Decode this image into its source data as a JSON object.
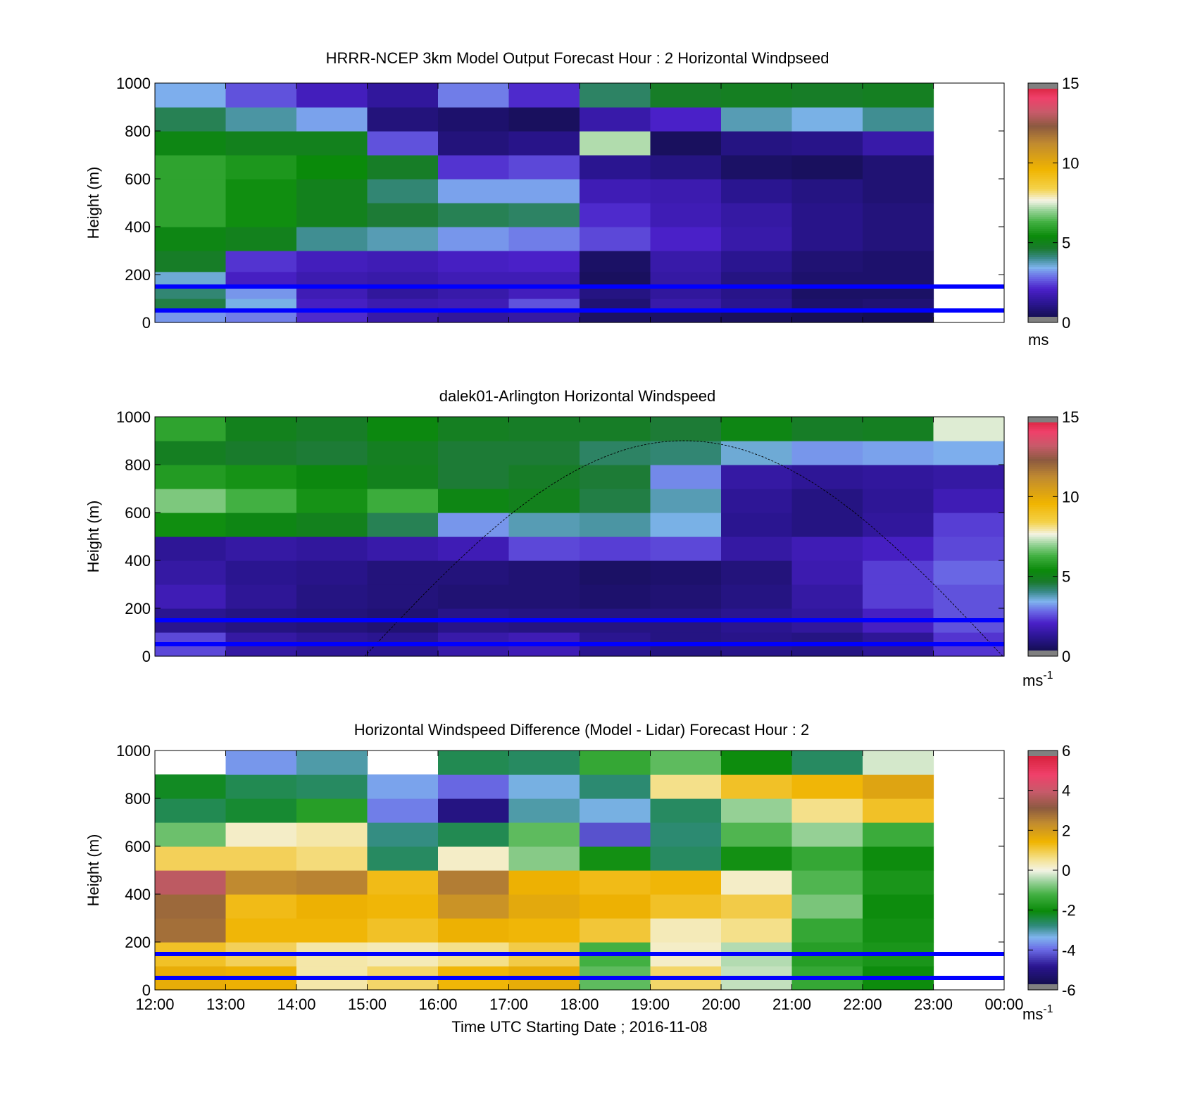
{
  "figure": {
    "xlabel": "Time UTC  Starting Date ; 2016-11-08",
    "x_tick_labels": [
      "12:00",
      "13:00",
      "14:00",
      "15:00",
      "16:00",
      "17:00",
      "18:00",
      "19:00",
      "20:00",
      "21:00",
      "22:00",
      "23:00",
      "00:00"
    ]
  },
  "chart_data": [
    {
      "type": "heatmap",
      "title": "HRRR-NCEP 3km Model Output   Forecast Hour : 2 Horizontal Windpseed",
      "ylabel": "Height (m)",
      "ylim": [
        0,
        1000
      ],
      "y_ticks": [
        0,
        200,
        400,
        600,
        800,
        1000
      ],
      "colorbar": {
        "range": [
          0,
          15
        ],
        "ticks": [
          0,
          5,
          10,
          15
        ],
        "unit": "ms",
        "unit_sup": ""
      },
      "x_hours": [
        "12:00",
        "13:00",
        "14:00",
        "15:00",
        "16:00",
        "17:00",
        "18:00",
        "19:00",
        "20:00",
        "21:00",
        "22:00"
      ],
      "y_levels": [
        25,
        75,
        125,
        175,
        250,
        350,
        450,
        550,
        650,
        750,
        850,
        950
      ],
      "values": [
        [
          3.2,
          3.0,
          2.2,
          1.6,
          1.4,
          1.5,
          0.6,
          0.6,
          0.5,
          0.4,
          0.3
        ],
        [
          4.5,
          3.5,
          2.0,
          1.7,
          1.8,
          2.6,
          0.8,
          1.6,
          1.2,
          0.7,
          0.8
        ],
        [
          4.2,
          3.2,
          1.8,
          1.4,
          1.6,
          1.9,
          1.0,
          1.4,
          1.1,
          0.6,
          0.6
        ],
        [
          3.6,
          2.0,
          1.7,
          1.6,
          1.8,
          1.8,
          0.5,
          1.5,
          1.0,
          0.7,
          0.7
        ],
        [
          4.8,
          2.3,
          1.9,
          1.8,
          2.0,
          2.1,
          0.6,
          1.6,
          1.2,
          0.8,
          0.7
        ],
        [
          5.2,
          5.0,
          4.0,
          3.8,
          3.2,
          3.0,
          2.5,
          2.1,
          1.6,
          1.1,
          0.9
        ],
        [
          6.0,
          5.5,
          5.0,
          4.6,
          4.4,
          4.3,
          2.2,
          1.8,
          1.5,
          1.1,
          0.9
        ],
        [
          6.0,
          5.5,
          5.0,
          4.2,
          3.3,
          3.3,
          1.8,
          1.7,
          1.2,
          1.0,
          0.8
        ],
        [
          6.0,
          5.7,
          5.4,
          4.8,
          2.3,
          2.5,
          1.2,
          1.0,
          0.6,
          0.5,
          0.8
        ],
        [
          5.2,
          5.0,
          5.0,
          2.6,
          0.9,
          1.1,
          7.2,
          0.5,
          1.0,
          1.1,
          1.6
        ],
        [
          4.4,
          3.9,
          3.3,
          0.9,
          0.7,
          0.5,
          1.6,
          2.1,
          3.8,
          3.5,
          4.0
        ],
        [
          3.4,
          2.6,
          1.9,
          1.4,
          3.0,
          2.2,
          4.3,
          4.8,
          4.9,
          4.8,
          4.9
        ]
      ],
      "reference_lines_m": [
        150,
        50
      ],
      "reference_line_color": "#0000ff"
    },
    {
      "type": "heatmap",
      "title": "dalek01-Arlington  Horizontal Windspeed",
      "ylabel": "Height (m)",
      "ylim": [
        0,
        1000
      ],
      "y_ticks": [
        0,
        200,
        400,
        600,
        800,
        1000
      ],
      "colorbar": {
        "range": [
          0,
          15
        ],
        "ticks": [
          0,
          5,
          10,
          15
        ],
        "unit": "ms",
        "unit_sup": "-1"
      },
      "x_hours": [
        "12:00",
        "13:00",
        "14:00",
        "15:00",
        "16:00",
        "17:00",
        "18:00",
        "19:00",
        "20:00",
        "21:00",
        "22:00",
        "23:00"
      ],
      "y_levels": [
        50,
        150,
        250,
        350,
        450,
        550,
        650,
        750,
        850,
        950
      ],
      "values": [
        [
          2.5,
          1.5,
          1.3,
          1.2,
          1.6,
          1.8,
          1.2,
          1.0,
          1.1,
          1.0,
          1.3,
          2.3
        ],
        [
          1.2,
          1.0,
          0.9,
          0.8,
          1.1,
          1.0,
          1.0,
          1.0,
          1.2,
          1.4,
          2.0,
          2.6
        ],
        [
          1.8,
          1.3,
          1.0,
          0.9,
          0.8,
          0.8,
          0.7,
          0.8,
          1.0,
          1.5,
          2.4,
          2.6
        ],
        [
          1.5,
          1.2,
          1.1,
          0.9,
          0.9,
          0.8,
          0.6,
          0.7,
          0.9,
          1.7,
          2.4,
          2.8
        ],
        [
          1.3,
          1.5,
          1.4,
          1.6,
          1.8,
          2.5,
          2.4,
          2.5,
          1.5,
          1.8,
          2.0,
          2.5
        ],
        [
          5.5,
          5.2,
          5.0,
          4.4,
          3.2,
          3.8,
          3.9,
          3.5,
          1.2,
          1.0,
          1.4,
          2.4
        ],
        [
          6.8,
          6.3,
          5.6,
          6.2,
          5.2,
          5.0,
          4.5,
          3.8,
          1.3,
          1.0,
          1.3,
          1.8
        ],
        [
          5.8,
          5.6,
          5.3,
          5.0,
          4.6,
          4.8,
          4.6,
          3.1,
          1.5,
          1.3,
          1.4,
          1.5
        ],
        [
          4.9,
          4.7,
          4.6,
          4.9,
          4.6,
          4.6,
          4.3,
          4.2,
          3.6,
          3.2,
          3.3,
          3.4
        ],
        [
          6.0,
          5.0,
          4.8,
          5.3,
          4.9,
          4.8,
          4.8,
          4.6,
          5.2,
          4.8,
          4.9,
          7.5
        ]
      ],
      "overlay_curve": "sinusoid",
      "reference_lines_m": [
        150,
        50
      ],
      "reference_line_color": "#0000ff"
    },
    {
      "type": "heatmap",
      "title": "Horizontal Windspeed Difference (Model - Lidar) Forecast Hour : 2",
      "ylabel": "Height (m)",
      "ylim": [
        0,
        1000
      ],
      "y_ticks": [
        0,
        200,
        400,
        600,
        800,
        1000
      ],
      "colorbar": {
        "range": [
          -6,
          6
        ],
        "ticks": [
          -6,
          -4,
          -2,
          0,
          2,
          4,
          6
        ],
        "unit": "ms",
        "unit_sup": "-1"
      },
      "x_hours": [
        "12:00",
        "13:00",
        "14:00",
        "15:00",
        "16:00",
        "17:00",
        "18:00",
        "19:00",
        "20:00",
        "21:00",
        "22:00"
      ],
      "y_levels": [
        50,
        150,
        250,
        350,
        450,
        550,
        650,
        750,
        850,
        950
      ],
      "values": [
        [
          1.6,
          1.5,
          0.4,
          0.8,
          1.4,
          1.6,
          -1.0,
          0.8,
          -0.3,
          -1.4,
          -2.0
        ],
        [
          1.2,
          0.9,
          0.4,
          0.3,
          0.6,
          1.0,
          -1.2,
          0.2,
          -0.4,
          -1.6,
          -1.8
        ],
        [
          2.8,
          1.4,
          1.4,
          1.2,
          1.5,
          1.4,
          1.1,
          0.3,
          0.6,
          -1.4,
          -1.9
        ],
        [
          2.9,
          1.3,
          1.5,
          1.4,
          2.2,
          1.7,
          1.5,
          1.2,
          1.0,
          -0.8,
          -2.0
        ],
        [
          3.8,
          2.4,
          2.5,
          1.3,
          2.6,
          1.5,
          1.3,
          1.4,
          0.2,
          -1.1,
          -1.8
        ],
        [
          0.9,
          0.9,
          0.7,
          -2.6,
          0.2,
          -0.7,
          -1.9,
          -2.6,
          -1.9,
          -1.4,
          -2.0
        ],
        [
          -0.9,
          0.2,
          0.4,
          -2.8,
          -2.5,
          -1.0,
          -4.2,
          -2.7,
          -1.1,
          -0.6,
          -1.3
        ],
        [
          -2.5,
          -2.3,
          -1.6,
          -3.8,
          -5.0,
          -3.0,
          -3.3,
          -2.6,
          -0.6,
          0.6,
          1.2
        ],
        [
          -2.2,
          -2.5,
          -2.6,
          -3.5,
          -4.0,
          -3.3,
          -2.7,
          0.6,
          1.2,
          1.4,
          1.8
        ],
        [
          null,
          -3.6,
          -3.0,
          null,
          -2.5,
          -2.6,
          -1.4,
          -1.0,
          -2.0,
          -2.6,
          -0.2
        ]
      ],
      "reference_lines_m": [
        150,
        50
      ],
      "reference_line_color": "#0000ff"
    }
  ]
}
